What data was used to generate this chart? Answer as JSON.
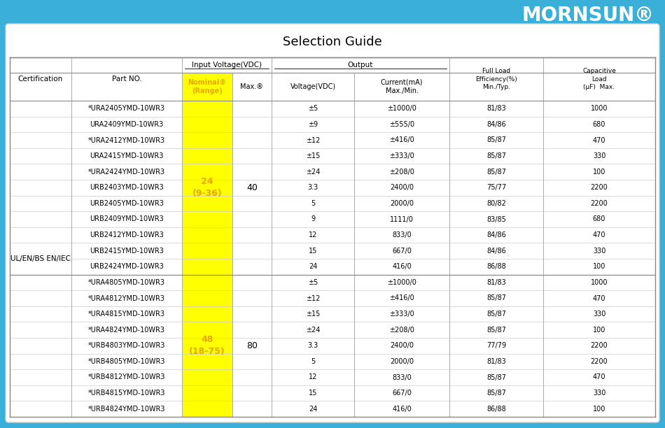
{
  "title": "Selection Guide",
  "mornsun_text": "MORNSUN",
  "mornsun_reg": "®",
  "bg_color": "#3ab0d8",
  "nominal_bg": "#ffff00",
  "nominal_color": "#e6a800",
  "rows": [
    [
      "*URA2405YMD-10WR3",
      "±5",
      "±1000/0",
      "81/83",
      "1000"
    ],
    [
      "URA2409YMD-10WR3",
      "±9",
      "±555/0",
      "84/86",
      "680"
    ],
    [
      "*URA2412YMD-10WR3",
      "±12",
      "±416/0",
      "85/87",
      "470"
    ],
    [
      "URA2415YMD-10WR3",
      "±15",
      "±333/0",
      "85/87",
      "330"
    ],
    [
      "*URA2424YMD-10WR3",
      "±24",
      "±208/0",
      "85/87",
      "100"
    ],
    [
      "URB2403YMD-10WR3",
      "3.3",
      "2400/0",
      "75/77",
      "2200"
    ],
    [
      "URB2405YMD-10WR3",
      "5",
      "2000/0",
      "80/82",
      "2200"
    ],
    [
      "URB2409YMD-10WR3",
      "9",
      "1111/0",
      "83/85",
      "680"
    ],
    [
      "URB2412YMD-10WR3",
      "12",
      "833/0",
      "84/86",
      "470"
    ],
    [
      "URB2415YMD-10WR3",
      "15",
      "667/0",
      "84/86",
      "330"
    ],
    [
      "URB2424YMD-10WR3",
      "24",
      "416/0",
      "86/88",
      "100"
    ],
    [
      "*URA4805YMD-10WR3",
      "±5",
      "±1000/0",
      "81/83",
      "1000"
    ],
    [
      "*URA4812YMD-10WR3",
      "±12",
      "±416/0",
      "85/87",
      "470"
    ],
    [
      "*URA4815YMD-10WR3",
      "±15",
      "±333/0",
      "85/87",
      "330"
    ],
    [
      "*URA4824YMD-10WR3",
      "±24",
      "±208/0",
      "85/87",
      "100"
    ],
    [
      "*URB4803YMD-10WR3",
      "3.3",
      "2400/0",
      "77/79",
      "2200"
    ],
    [
      "*URB4805YMD-10WR3",
      "5",
      "2000/0",
      "81/83",
      "2200"
    ],
    [
      "*URB4812YMD-10WR3",
      "12",
      "833/0",
      "85/87",
      "470"
    ],
    [
      "*URB4815YMD-10WR3",
      "15",
      "667/0",
      "85/87",
      "330"
    ],
    [
      "*URB4824YMD-10WR3",
      "24",
      "416/0",
      "86/88",
      "100"
    ]
  ],
  "certification": "UL/EN/BS EN/IEC",
  "nominal_groups": [
    {
      "label": "24\n(9-36)",
      "start": 0,
      "end": 10,
      "max_label": "40"
    },
    {
      "label": "48\n(18-75)",
      "start": 11,
      "end": 19,
      "max_label": "80"
    }
  ]
}
